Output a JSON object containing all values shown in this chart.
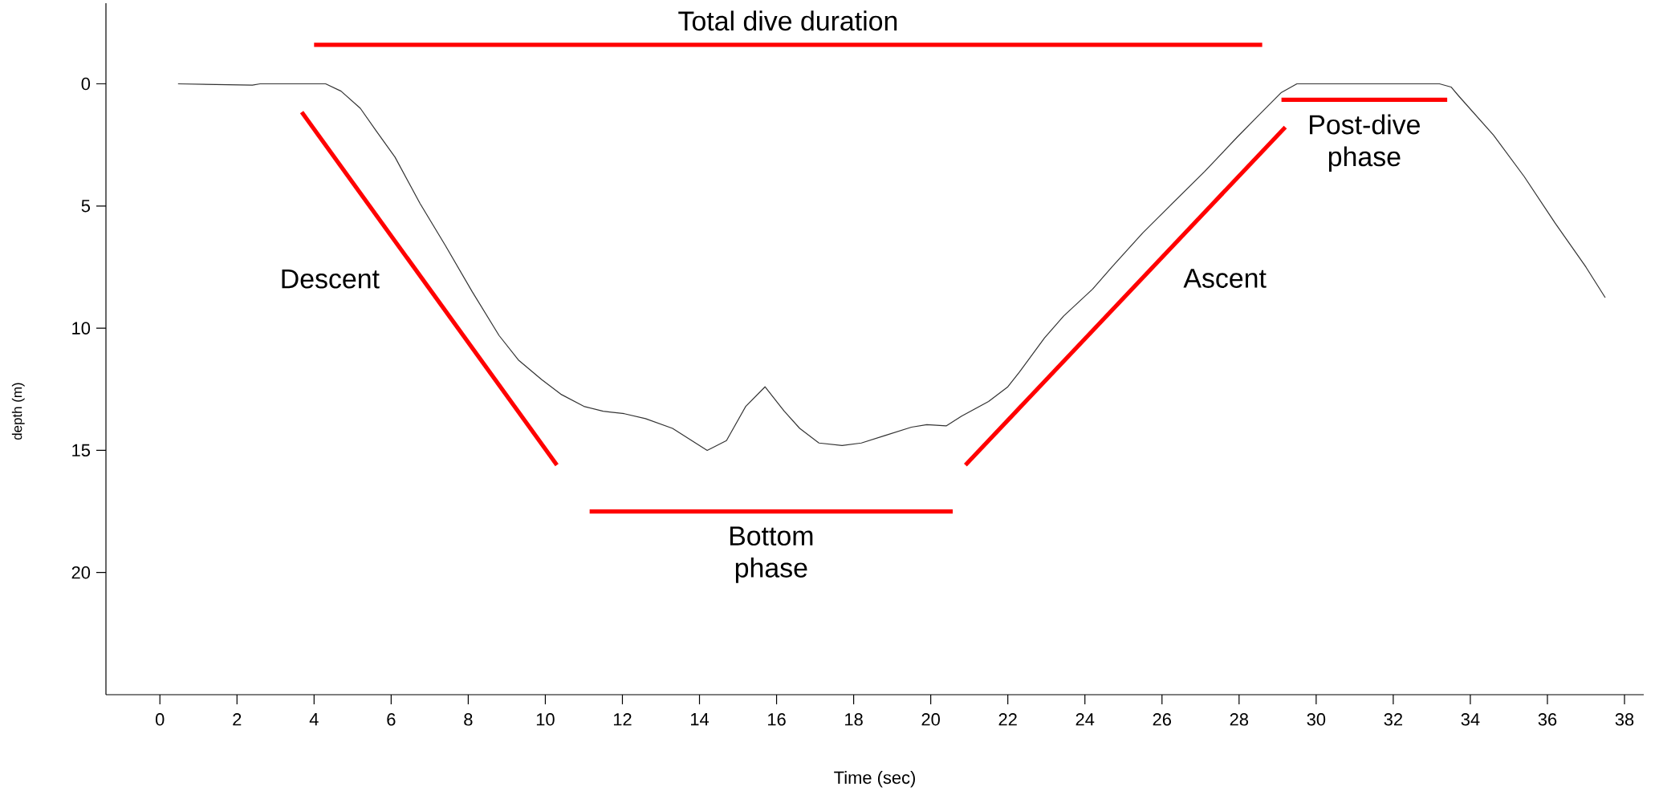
{
  "chart_data": {
    "type": "line",
    "xlabel": "Time (sec)",
    "ylabel": "depth (m)",
    "xlim": [
      -1.4,
      38.5
    ],
    "ylim": [
      25,
      -3.3
    ],
    "xticks": [
      0,
      2,
      4,
      6,
      8,
      10,
      12,
      14,
      16,
      18,
      20,
      22,
      24,
      26,
      28,
      30,
      32,
      34,
      36,
      38
    ],
    "yticks": [
      0,
      5,
      10,
      15,
      20
    ],
    "series": [
      {
        "color": "#333333",
        "x": [
          0.47,
          2.4,
          2.6,
          4.1,
          4.3,
          4.7,
          5.2,
          5.6,
          6.1,
          6.75,
          7.4,
          8.1,
          8.8,
          9.3,
          9.9,
          10.4,
          11.0,
          11.5,
          12.05,
          12.6,
          13.3,
          14.2,
          14.7,
          15.2,
          15.7,
          16.2,
          16.6,
          17.1,
          17.7,
          18.2,
          18.8,
          19.5,
          19.9,
          20.4,
          20.8,
          21.5,
          22.0,
          22.3,
          22.95,
          23.45,
          24.2,
          24.7,
          25.5,
          26.2,
          27.1,
          27.97,
          28.5,
          29.1,
          29.5,
          30.7,
          31.5,
          33.2,
          33.5,
          33.7,
          34.6,
          35.4,
          36.2,
          37.0,
          37.5
        ],
        "values": [
          0,
          0.05,
          0,
          0,
          0,
          0.3,
          1.0,
          1.9,
          3.0,
          4.9,
          6.6,
          8.5,
          10.3,
          11.3,
          12.1,
          12.7,
          13.2,
          13.4,
          13.5,
          13.7,
          14.1,
          15.0,
          14.6,
          13.2,
          12.4,
          13.4,
          14.1,
          14.7,
          14.8,
          14.7,
          14.4,
          14.05,
          13.95,
          14.0,
          13.6,
          13.0,
          12.4,
          11.8,
          10.4,
          9.5,
          8.4,
          7.5,
          6.1,
          5.0,
          3.6,
          2.15,
          1.3,
          0.35,
          0,
          0,
          0,
          0,
          0.13,
          0.5,
          2.1,
          3.8,
          5.7,
          7.5,
          8.75
        ]
      },
      {
        "color": "#ff0000",
        "x": [
          4.0,
          28.6
        ],
        "values": [
          -1.6,
          -1.6
        ]
      },
      {
        "color": "#ff0000",
        "x": [
          3.68,
          10.3
        ],
        "values": [
          1.16,
          15.6
        ]
      },
      {
        "color": "#ff0000",
        "x": [
          11.15,
          20.57
        ],
        "values": [
          17.5,
          17.5
        ]
      },
      {
        "color": "#ff0000",
        "x": [
          20.9,
          29.2
        ],
        "values": [
          15.6,
          1.77
        ]
      },
      {
        "color": "#ff0000",
        "x": [
          29.1,
          33.4
        ],
        "values": [
          0.65,
          0.65
        ]
      }
    ],
    "annotations": [
      "Total dive duration",
      "Descent",
      "Bottom phase",
      "Ascent",
      "Post-dive phase"
    ]
  }
}
